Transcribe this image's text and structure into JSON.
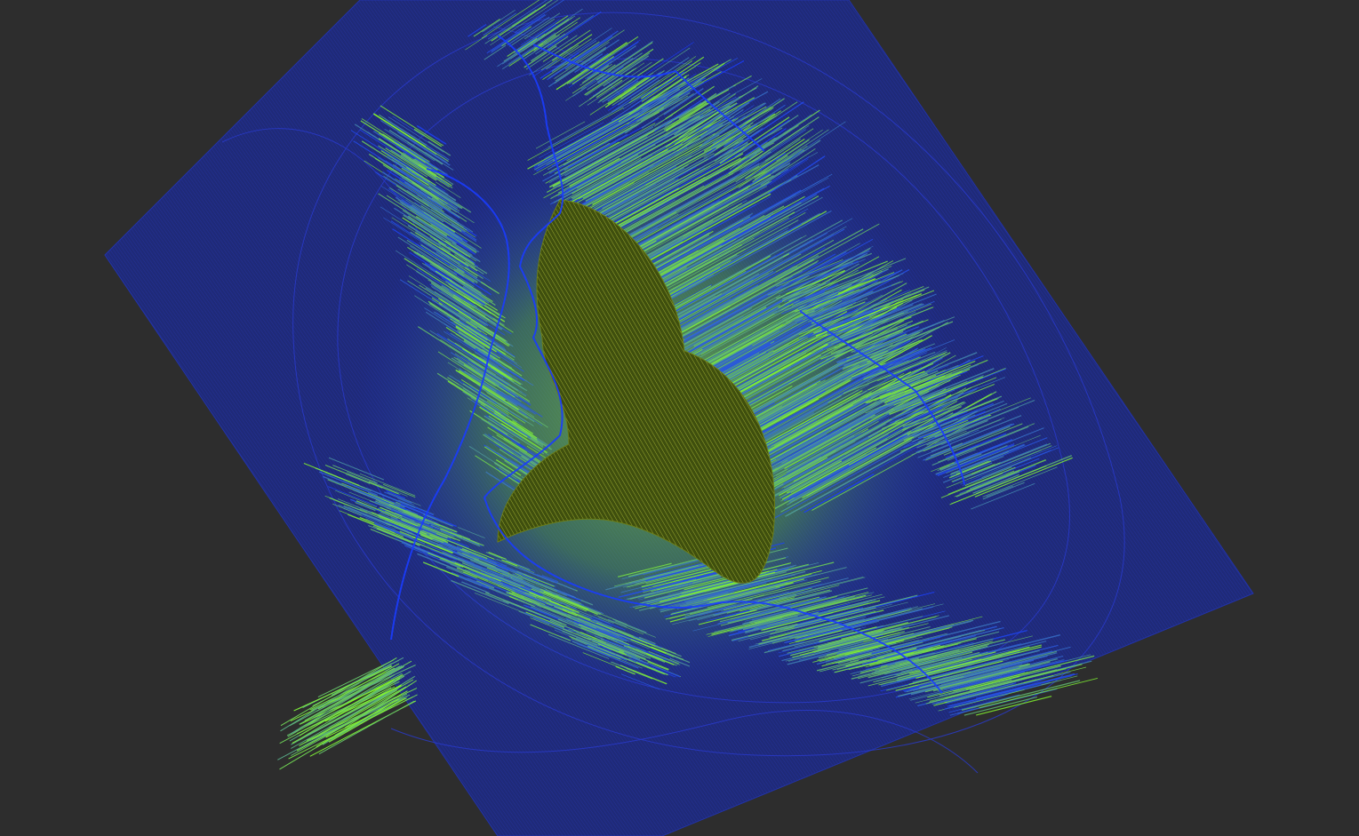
{
  "viewport": {
    "background": "#2d2d2d"
  },
  "render": {
    "subject": "3d-mandelbrot-height-mesh",
    "colors": {
      "plane": "#1f2a78",
      "plane_edge": "#2233aa",
      "contour": "#2a3bd0",
      "spike_low": "#1a3cff",
      "spike_high": "#88ff22",
      "core": "#4a5a10",
      "core_line": "#9aa830"
    }
  }
}
